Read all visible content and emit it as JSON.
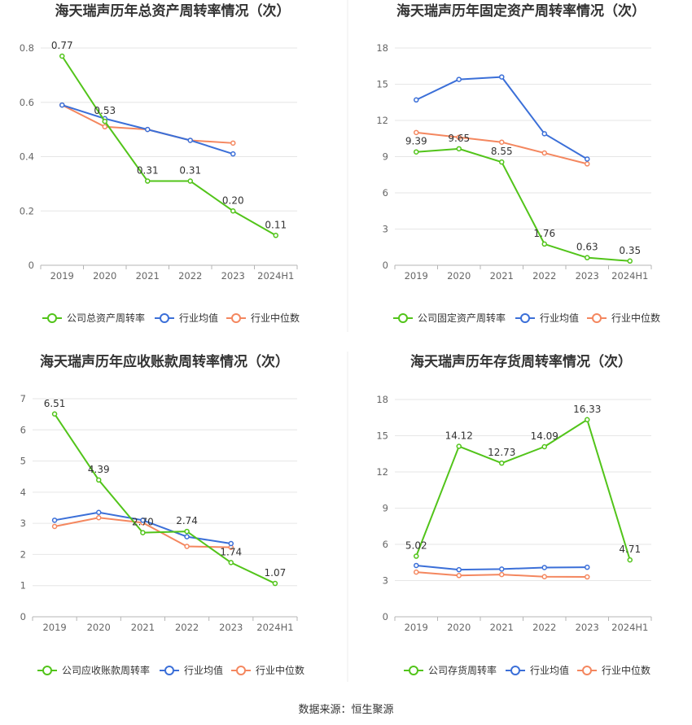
{
  "footer": "数据来源：恒生聚源",
  "colors": {
    "company": "#52c41a",
    "avg": "#3b6fd8",
    "median": "#f4875f"
  },
  "chart_data": [
    {
      "type": "line",
      "title": "海天瑞声历年总资产周转率情况（次）",
      "categories": [
        "2019",
        "2020",
        "2021",
        "2022",
        "2023",
        "2024H1"
      ],
      "ylim": [
        0,
        0.8
      ],
      "yticks": [
        "0",
        "0.2",
        "0.4",
        "0.6",
        "0.8"
      ],
      "grid": true,
      "legend_position": "bottom",
      "series": [
        {
          "name": "公司总资产周转率",
          "values": [
            0.77,
            0.53,
            0.31,
            0.31,
            0.2,
            0.11
          ],
          "labels": [
            "0.77",
            "0.53",
            "0.31",
            "0.31",
            "0.20",
            "0.11"
          ]
        },
        {
          "name": "行业均值",
          "values": [
            0.59,
            0.54,
            0.5,
            0.46,
            0.41,
            null
          ]
        },
        {
          "name": "行业中位数",
          "values": [
            0.59,
            0.51,
            0.5,
            0.46,
            0.45,
            null
          ]
        }
      ]
    },
    {
      "type": "line",
      "title": "海天瑞声历年固定资产周转率情况（次）",
      "categories": [
        "2019",
        "2020",
        "2021",
        "2022",
        "2023",
        "2024H1"
      ],
      "ylim": [
        0,
        18
      ],
      "yticks": [
        "0",
        "3",
        "6",
        "9",
        "12",
        "15",
        "18"
      ],
      "grid": true,
      "legend_position": "bottom",
      "series": [
        {
          "name": "公司固定资产周转率",
          "values": [
            9.39,
            9.65,
            8.55,
            1.76,
            0.63,
            0.35
          ],
          "labels": [
            "9.39",
            "9.65",
            "8.55",
            "1.76",
            "0.63",
            "0.35"
          ]
        },
        {
          "name": "行业均值",
          "values": [
            13.7,
            15.4,
            15.6,
            10.9,
            8.8,
            null
          ]
        },
        {
          "name": "行业中位数",
          "values": [
            11.0,
            10.6,
            10.2,
            9.3,
            8.4,
            null
          ]
        }
      ]
    },
    {
      "type": "line",
      "title": "海天瑞声历年应收账款周转率情况（次）",
      "categories": [
        "2019",
        "2020",
        "2021",
        "2022",
        "2023",
        "2024H1"
      ],
      "ylim": [
        0,
        7
      ],
      "yticks": [
        "0",
        "1",
        "2",
        "3",
        "4",
        "5",
        "6",
        "7"
      ],
      "grid": true,
      "legend_position": "bottom",
      "series": [
        {
          "name": "公司应收账款周转率",
          "values": [
            6.51,
            4.39,
            2.7,
            2.74,
            1.74,
            1.07
          ],
          "labels": [
            "6.51",
            "4.39",
            "2.70",
            "2.74",
            "1.74",
            "1.07"
          ]
        },
        {
          "name": "行业均值",
          "values": [
            3.1,
            3.35,
            3.1,
            2.57,
            2.35,
            null
          ]
        },
        {
          "name": "行业中位数",
          "values": [
            2.9,
            3.18,
            3.02,
            2.26,
            2.23,
            null
          ]
        }
      ]
    },
    {
      "type": "line",
      "title": "海天瑞声历年存货周转率情况（次）",
      "categories": [
        "2019",
        "2020",
        "2021",
        "2022",
        "2023",
        "2024H1"
      ],
      "ylim": [
        0,
        18
      ],
      "yticks": [
        "0",
        "3",
        "6",
        "9",
        "12",
        "15",
        "18"
      ],
      "grid": true,
      "legend_position": "bottom",
      "series": [
        {
          "name": "公司存货周转率",
          "values": [
            5.02,
            14.12,
            12.73,
            14.09,
            16.33,
            4.71
          ],
          "labels": [
            "5.02",
            "14.12",
            "12.73",
            "14.09",
            "16.33",
            "4.71"
          ]
        },
        {
          "name": "行业均值",
          "values": [
            4.25,
            3.9,
            3.95,
            4.08,
            4.1,
            null
          ]
        },
        {
          "name": "行业中位数",
          "values": [
            3.7,
            3.42,
            3.5,
            3.32,
            3.3,
            null
          ]
        }
      ]
    }
  ]
}
